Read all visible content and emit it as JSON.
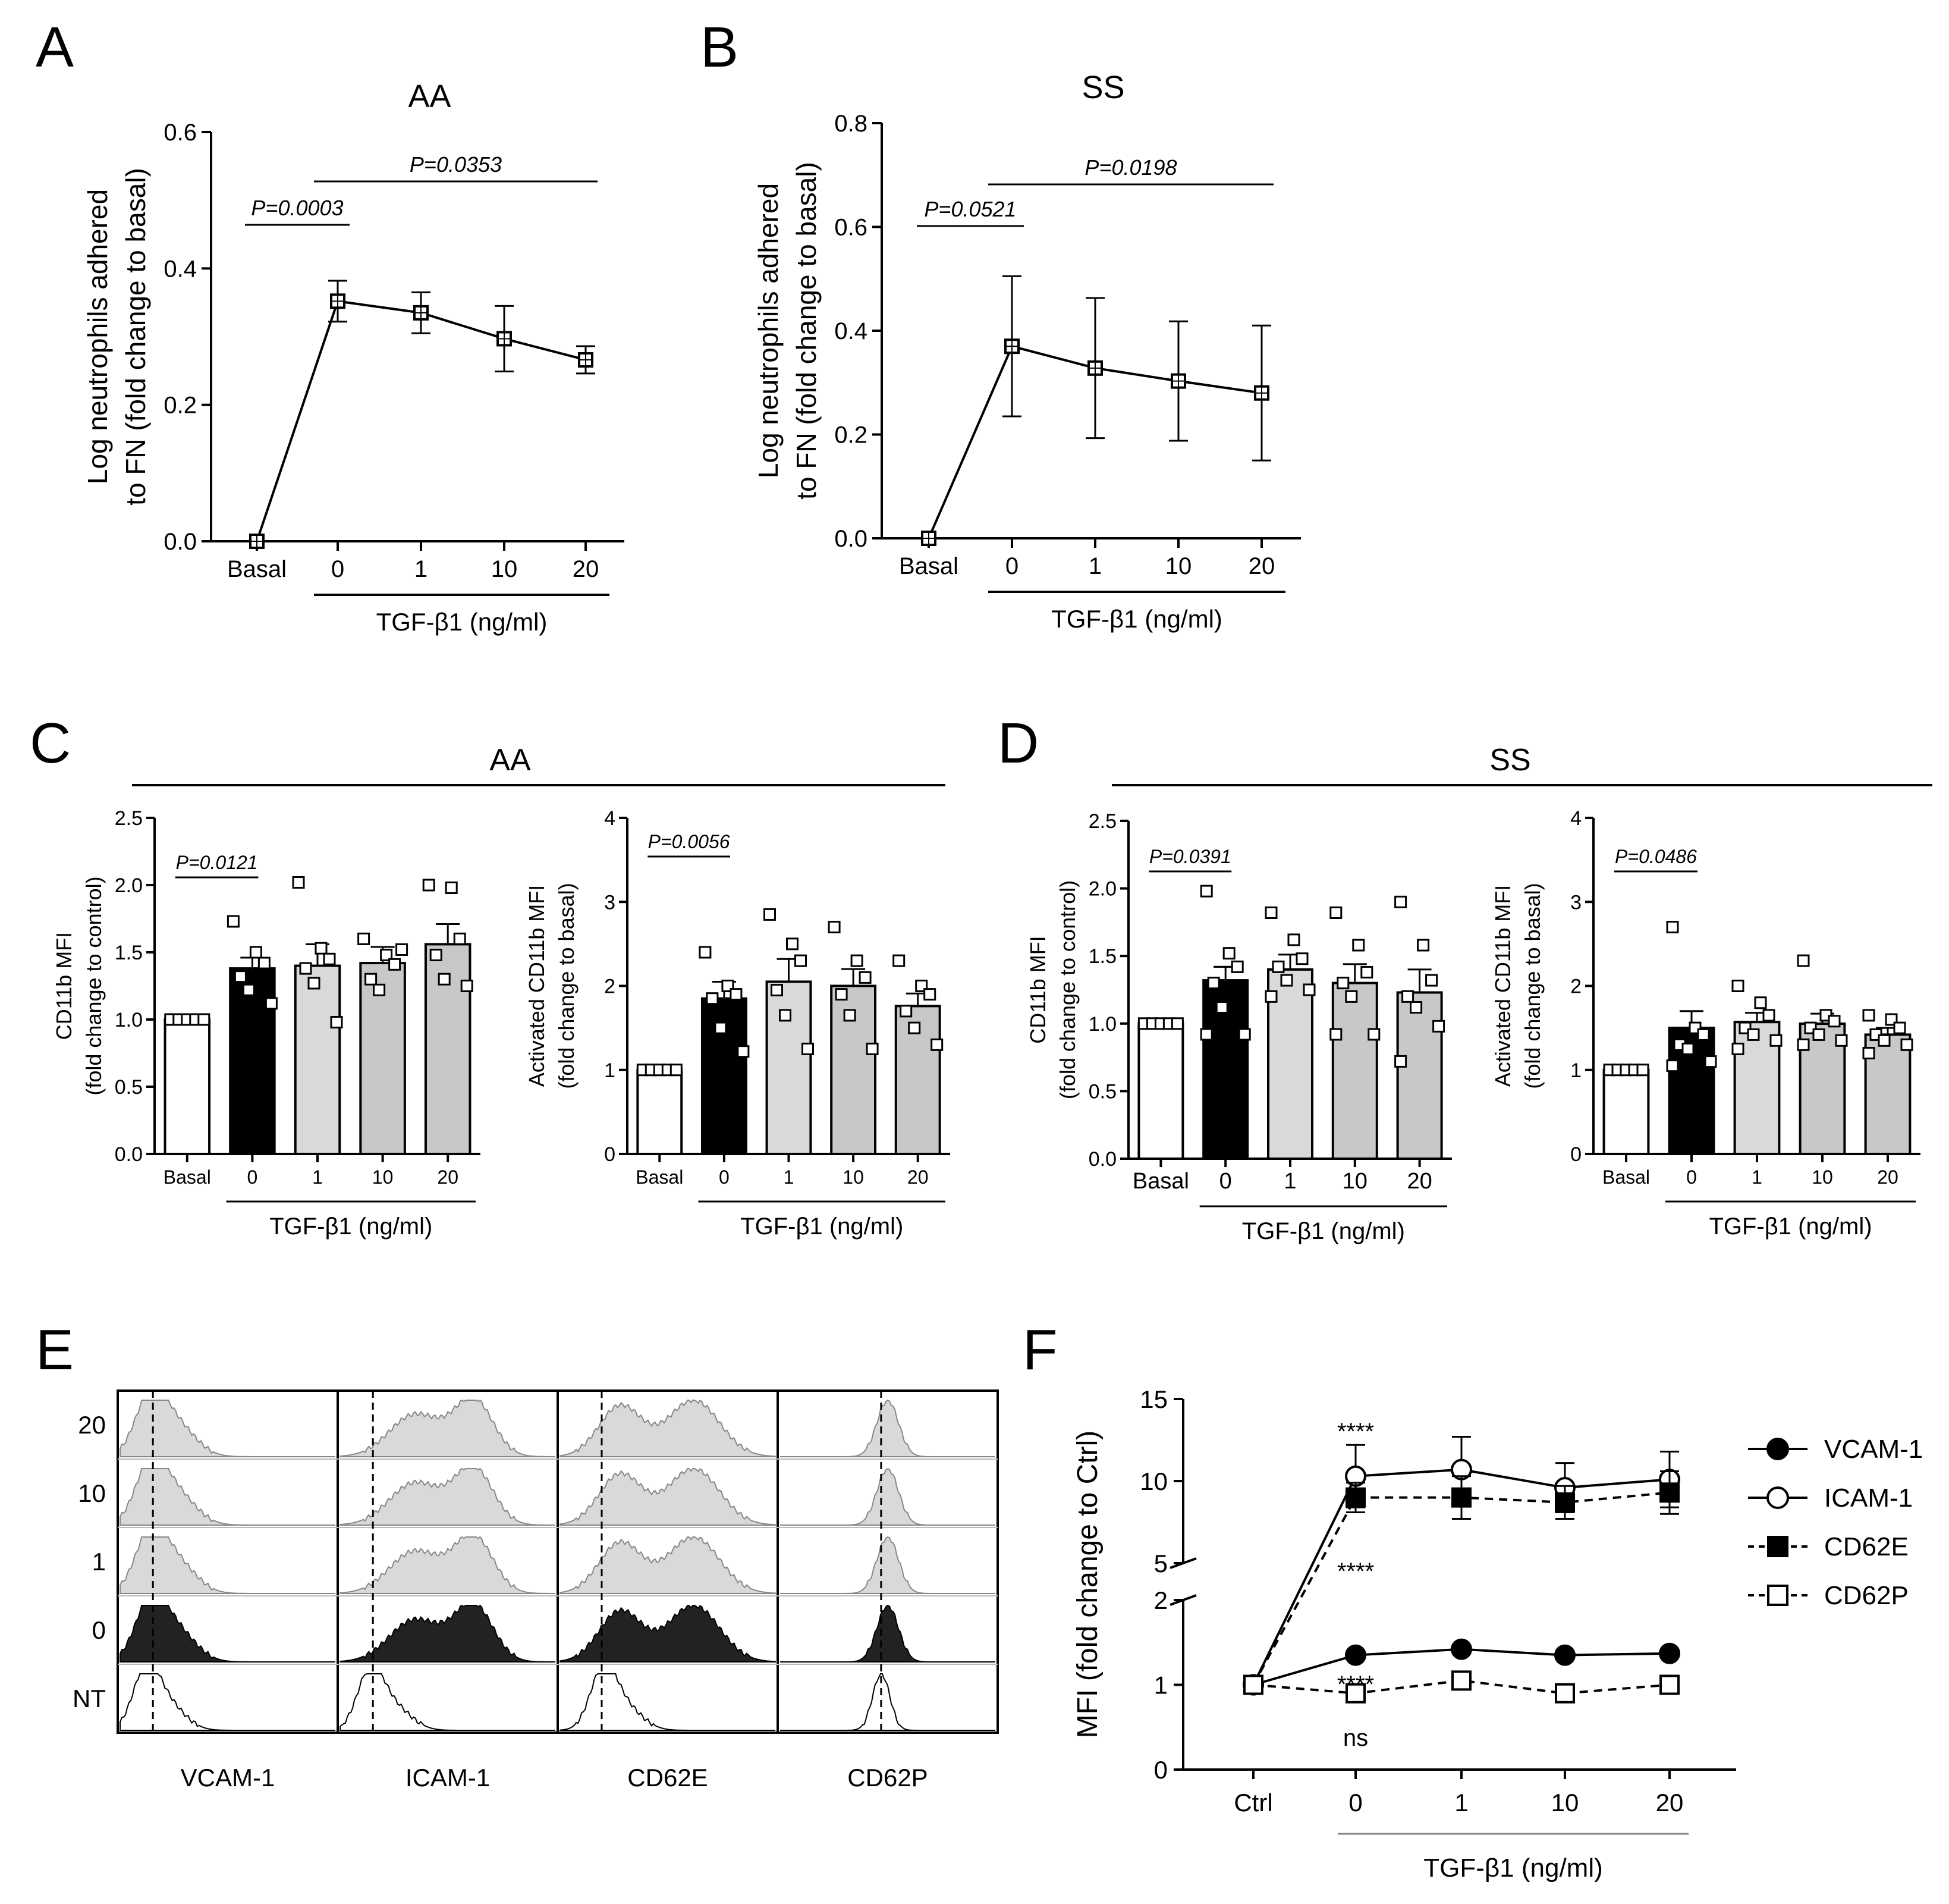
{
  "panel_letters": [
    "A",
    "B",
    "C",
    "D",
    "E",
    "F"
  ],
  "chart_data": [
    {
      "id": "A",
      "type": "line",
      "title": "AA",
      "ylabel_lines": [
        "Log neutrophils adhered",
        "to FN (fold change to basal)"
      ],
      "categories": [
        "Basal",
        "0",
        "1",
        "10",
        "20"
      ],
      "group_label": "TGF-β1 (ng/ml)",
      "ylim": [
        0,
        0.6
      ],
      "yticks": [
        "0.0",
        "0.2",
        "0.4",
        "0.6"
      ],
      "series": [
        {
          "values": [
            0.0,
            0.352,
            0.335,
            0.297,
            0.266
          ],
          "errors": [
            0,
            0.03,
            0.03,
            0.048,
            0.02
          ]
        }
      ],
      "annotations": [
        {
          "text": "P=0.0003",
          "from": 0,
          "to": 1
        },
        {
          "text": "P=0.0353",
          "from": 1,
          "to": 4
        }
      ]
    },
    {
      "id": "B",
      "type": "line",
      "title": "SS",
      "ylabel_lines": [
        "Log neutrophils adhered",
        "to FN (fold change to basal)"
      ],
      "categories": [
        "Basal",
        "0",
        "1",
        "10",
        "20"
      ],
      "group_label": "TGF-β1 (ng/ml)",
      "ylim": [
        0,
        0.8
      ],
      "yticks": [
        "0.0",
        "0.2",
        "0.4",
        "0.6",
        "0.8"
      ],
      "series": [
        {
          "values": [
            0.0,
            0.37,
            0.328,
            0.303,
            0.28
          ],
          "errors": [
            0,
            0.135,
            0.135,
            0.115,
            0.13
          ]
        }
      ],
      "annotations": [
        {
          "text": "P=0.0521",
          "from": 0,
          "to": 1
        },
        {
          "text": "P=0.0198",
          "from": 1,
          "to": 4
        }
      ]
    },
    {
      "id": "C1",
      "type": "bar",
      "group_title": "AA",
      "ylabel_lines": [
        "CD11b MFI",
        "(fold change to control)"
      ],
      "categories": [
        "Basal",
        "0",
        "1",
        "10",
        "20"
      ],
      "group_label": "TGF-β1 (ng/ml)",
      "ylim": [
        0,
        2.5
      ],
      "yticks": [
        "0.0",
        "0.5",
        "1.0",
        "1.5",
        "2.0",
        "2.5"
      ],
      "values": [
        1.0,
        1.38,
        1.4,
        1.42,
        1.56
      ],
      "errors": [
        0,
        0.08,
        0.16,
        0.12,
        0.15
      ],
      "points": [
        [
          1,
          1,
          1,
          1,
          1
        ],
        [
          1.73,
          1.5,
          1.42,
          1.32,
          1.22,
          1.12
        ],
        [
          2.02,
          1.53,
          1.45,
          1.38,
          1.27,
          0.98
        ],
        [
          1.6,
          1.48,
          1.41,
          1.3,
          1.22,
          1.52
        ],
        [
          2.0,
          1.98,
          1.6,
          1.48,
          1.3,
          1.25
        ]
      ],
      "colors": [
        "#ffffff",
        "#000000",
        "#d9d9d9",
        "#c8c8c8",
        "#c8c8c8"
      ],
      "annotations": [
        {
          "text": "P=0.0121",
          "from": 0,
          "to": 1
        }
      ]
    },
    {
      "id": "C2",
      "type": "bar",
      "ylabel_lines": [
        "Activated CD11b MFI",
        "(fold change to basal)"
      ],
      "categories": [
        "Basal",
        "0",
        "1",
        "10",
        "20"
      ],
      "group_label": "TGF-β1 (ng/ml)",
      "ylim": [
        0,
        4
      ],
      "yticks": [
        "0",
        "1",
        "2",
        "3",
        "4"
      ],
      "values": [
        1.0,
        1.85,
        2.05,
        2.0,
        1.76
      ],
      "errors": [
        0,
        0.2,
        0.27,
        0.2,
        0.15
      ],
      "points": [
        [
          1,
          1,
          1,
          1,
          1
        ],
        [
          2.4,
          2.0,
          1.9,
          1.85,
          1.5,
          1.22
        ],
        [
          2.85,
          2.5,
          2.3,
          1.95,
          1.65,
          1.25
        ],
        [
          2.7,
          2.3,
          2.1,
          1.9,
          1.65,
          1.25
        ],
        [
          2.3,
          2.0,
          1.9,
          1.7,
          1.5,
          1.3
        ]
      ],
      "colors": [
        "#ffffff",
        "#000000",
        "#d9d9d9",
        "#c8c8c8",
        "#c8c8c8"
      ],
      "annotations": [
        {
          "text": "P=0.0056",
          "from": 0,
          "to": 1
        }
      ]
    },
    {
      "id": "D1",
      "type": "bar",
      "group_title": "SS",
      "ylabel_lines": [
        "CD11b MFI",
        "(fold change to control)"
      ],
      "categories": [
        "Basal",
        "0",
        "1",
        "10",
        "20"
      ],
      "group_label": "TGF-β1 (ng/ml)",
      "ylim": [
        0,
        2.5
      ],
      "yticks": [
        "0.0",
        "0.5",
        "1.0",
        "1.5",
        "2.0",
        "2.5"
      ],
      "values": [
        1.0,
        1.32,
        1.4,
        1.3,
        1.23
      ],
      "errors": [
        0,
        0.1,
        0.11,
        0.14,
        0.17
      ],
      "points": [
        [
          1,
          1,
          1,
          1,
          1
        ],
        [
          1.98,
          1.52,
          1.42,
          1.3,
          1.12,
          0.92,
          0.92
        ],
        [
          1.82,
          1.62,
          1.48,
          1.42,
          1.32,
          1.25,
          1.2
        ],
        [
          1.82,
          1.58,
          1.38,
          1.3,
          1.2,
          0.92,
          0.92
        ],
        [
          1.9,
          1.58,
          1.32,
          1.2,
          1.12,
          0.98,
          0.72
        ]
      ],
      "colors": [
        "#ffffff",
        "#000000",
        "#d9d9d9",
        "#c8c8c8",
        "#c8c8c8"
      ],
      "annotations": [
        {
          "text": "P=0.0391",
          "from": 0,
          "to": 1
        }
      ]
    },
    {
      "id": "D2",
      "type": "bar",
      "ylabel_lines": [
        "Activated CD11b MFI",
        "(fold change to basal)"
      ],
      "categories": [
        "Basal",
        "0",
        "1",
        "10",
        "20"
      ],
      "group_label": "TGF-β1 (ng/ml)",
      "ylim": [
        0,
        4
      ],
      "yticks": [
        "0",
        "1",
        "2",
        "3",
        "4"
      ],
      "values": [
        1.0,
        1.5,
        1.57,
        1.55,
        1.42
      ],
      "errors": [
        0,
        0.2,
        0.11,
        0.12,
        0.08
      ],
      "points": [
        [
          1,
          1,
          1,
          1,
          1
        ],
        [
          2.7,
          1.5,
          1.42,
          1.3,
          1.25,
          1.1,
          1.05
        ],
        [
          2.0,
          1.8,
          1.65,
          1.5,
          1.42,
          1.35,
          1.25
        ],
        [
          2.3,
          1.65,
          1.58,
          1.5,
          1.42,
          1.35,
          1.3
        ],
        [
          1.65,
          1.6,
          1.5,
          1.42,
          1.35,
          1.3,
          1.2
        ]
      ],
      "colors": [
        "#ffffff",
        "#000000",
        "#d9d9d9",
        "#c8c8c8",
        "#c8c8c8"
      ],
      "annotations": [
        {
          "text": "P=0.0486",
          "from": 0,
          "to": 1
        }
      ]
    },
    {
      "id": "E",
      "type": "histogram-grid",
      "row_labels": [
        "20",
        "10",
        "1",
        "0",
        "NT"
      ],
      "column_labels": [
        "VCAM-1",
        "ICAM-1",
        "CD62E",
        "CD62P"
      ]
    },
    {
      "id": "F",
      "type": "line",
      "ylabel": "MFI (fold change to Ctrl)",
      "categories": [
        "Ctrl",
        "0",
        "1",
        "10",
        "20"
      ],
      "group_label": "TGF-β1 (ng/ml)",
      "yticks_lower": [
        "0",
        "1",
        "2"
      ],
      "yticks_upper": [
        "5",
        "10",
        "15"
      ],
      "ylim_lower": [
        0,
        2
      ],
      "ylim_upper": [
        5,
        15
      ],
      "legend_position": "right",
      "series": [
        {
          "name": "VCAM-1",
          "marker": "circle-filled",
          "dash": false,
          "values": [
            1.0,
            1.35,
            1.42,
            1.35,
            1.37
          ],
          "errors": [
            0,
            0.05,
            0.06,
            0.05,
            0.05
          ]
        },
        {
          "name": "ICAM-1",
          "marker": "circle-open",
          "dash": false,
          "values": [
            1.0,
            10.3,
            10.7,
            9.6,
            10.1
          ],
          "errors": [
            0,
            1.9,
            2.0,
            1.5,
            1.7
          ]
        },
        {
          "name": "CD62E",
          "marker": "square-filled",
          "dash": true,
          "values": [
            1.0,
            9.0,
            9.0,
            8.7,
            9.3
          ],
          "errors": [
            0,
            0.9,
            1.3,
            1.0,
            1.3
          ]
        },
        {
          "name": "CD62P",
          "marker": "square-open",
          "dash": true,
          "values": [
            1.0,
            0.9,
            1.05,
            0.9,
            1.0
          ],
          "errors": [
            0,
            0.04,
            0.04,
            0.04,
            0.04
          ]
        }
      ],
      "annotations": [
        "****",
        "****",
        "****",
        "ns"
      ]
    }
  ]
}
